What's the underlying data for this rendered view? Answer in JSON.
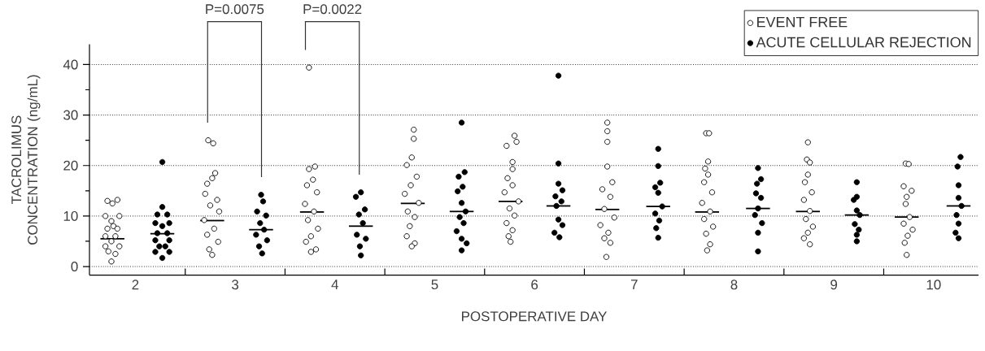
{
  "chart_data": {
    "type": "scatter",
    "xlabel": "POSTOPERATIVE DAY",
    "ylabel": "TACROLIMUS CONCENTRATION (ng/mL)",
    "xlim": [
      1.54,
      10.45
    ],
    "ylim": [
      -1.7,
      44
    ],
    "xticks": [
      2,
      3,
      4,
      5,
      6,
      7,
      8,
      9,
      10,
      {
        "value": 2.5,
        "label": null
      },
      {
        "value": 3.5,
        "label": null
      },
      {
        "value": 4.5,
        "label": null
      },
      {
        "value": 5.5,
        "label": null
      },
      {
        "value": 6.5,
        "label": null
      },
      {
        "value": 7.5,
        "label": null
      },
      {
        "value": 8.5,
        "label": null
      },
      {
        "value": 9.5,
        "label": null
      }
    ],
    "yticks": [
      0,
      10,
      20,
      30,
      40,
      {
        "value": 5,
        "label": null
      },
      {
        "value": 15,
        "label": null
      },
      {
        "value": 25,
        "label": null
      },
      {
        "value": 35,
        "label": null
      }
    ],
    "grid": "y",
    "legend": "top right",
    "annotations": [
      "P=0.0075",
      "P=0.0022"
    ],
    "series": [
      {
        "name": "EVENT FREE",
        "color": "#ffffff",
        "marker": "circle",
        "x": [
          1.72,
          1.77,
          1.82,
          1.7,
          1.84,
          1.76,
          1.78,
          1.72,
          1.82,
          1.7,
          1.8,
          1.76,
          1.7,
          1.84,
          1.73,
          1.8,
          1.76,
          2.73,
          2.78,
          2.8,
          2.77,
          2.72,
          2.7,
          2.82,
          2.75,
          2.84,
          2.69,
          2.79,
          2.72,
          2.83,
          2.74,
          2.77,
          3.74,
          3.8,
          3.74,
          3.78,
          3.72,
          3.82,
          3.7,
          3.79,
          3.73,
          3.83,
          3.76,
          3.71,
          3.81,
          3.76,
          4.79,
          4.79,
          4.77,
          4.72,
          4.82,
          4.76,
          4.7,
          4.84,
          4.73,
          4.8,
          4.75,
          4.72,
          4.8,
          4.77,
          5.8,
          5.82,
          5.72,
          5.78,
          5.78,
          5.73,
          5.78,
          5.7,
          5.84,
          5.75,
          5.8,
          5.72,
          5.78,
          5.74,
          5.76,
          6.73,
          6.73,
          6.73,
          6.73,
          6.78,
          6.68,
          6.76,
          6.7,
          6.8,
          6.66,
          6.74,
          6.7,
          6.76,
          6.72,
          7.72,
          7.75,
          7.74,
          7.71,
          7.74,
          7.7,
          7.78,
          7.68,
          7.76,
          7.7,
          7.79,
          7.72,
          7.76,
          7.73,
          8.74,
          8.73,
          8.76,
          8.74,
          8.71,
          8.78,
          8.7,
          8.76,
          8.72,
          8.79,
          8.74,
          8.7,
          8.76,
          9.72,
          9.75,
          9.7,
          9.78,
          9.73,
          9.72,
          9.76,
          9.7,
          9.79,
          9.74,
          9.71,
          9.73
        ],
        "values": [
          13.0,
          12.5,
          13.2,
          10.0,
          10.0,
          9.0,
          8.0,
          7.5,
          7.5,
          6.0,
          6.0,
          5.0,
          4.0,
          4.0,
          3.0,
          2.5,
          1.0,
          25.0,
          24.4,
          18.5,
          17.5,
          16.4,
          14.4,
          13.2,
          12.1,
          10.9,
          9.2,
          7.5,
          6.3,
          4.9,
          3.4,
          2.3,
          39.4,
          19.8,
          19.3,
          17.2,
          16.1,
          14.7,
          12.4,
          10.9,
          9.2,
          7.5,
          6.0,
          4.9,
          3.4,
          2.9,
          27.1,
          25.3,
          21.6,
          20.1,
          17.8,
          16.1,
          14.4,
          12.6,
          10.9,
          9.8,
          8.0,
          6.0,
          4.6,
          4.0,
          25.9,
          24.7,
          23.9,
          20.7,
          19.3,
          17.5,
          16.1,
          14.7,
          12.9,
          11.5,
          10.1,
          8.6,
          7.2,
          6.0,
          4.9,
          28.5,
          26.8,
          24.7,
          19.8,
          16.7,
          15.3,
          13.8,
          11.4,
          9.7,
          8.2,
          6.7,
          5.6,
          4.7,
          1.9,
          26.4,
          26.4,
          20.8,
          19.4,
          18.2,
          16.7,
          14.7,
          12.6,
          10.9,
          9.4,
          7.9,
          6.5,
          4.4,
          3.2,
          24.6,
          21.2,
          20.6,
          18.2,
          16.7,
          14.7,
          13.2,
          11.0,
          9.4,
          7.9,
          6.7,
          5.6,
          4.4,
          20.4,
          20.3,
          15.9,
          15.0,
          13.8,
          12.4,
          9.8,
          8.5,
          7.3,
          6.1,
          4.7,
          2.3
        ]
      },
      {
        "name": "ACUTE CELLULAR REJECTION",
        "color": "#000000",
        "marker": "circle",
        "x": [
          2.27,
          2.27,
          2.22,
          2.32,
          2.2,
          2.34,
          2.27,
          2.22,
          2.32,
          2.2,
          2.34,
          2.24,
          2.3,
          2.2,
          2.34,
          2.27,
          3.26,
          3.28,
          3.22,
          3.31,
          3.25,
          3.29,
          3.21,
          3.32,
          3.24,
          3.27,
          4.26,
          4.21,
          4.3,
          4.24,
          4.28,
          4.22,
          4.31,
          4.25,
          4.26,
          5.27,
          5.3,
          5.24,
          5.28,
          5.23,
          5.27,
          5.31,
          5.25,
          5.29,
          5.22,
          5.27,
          5.32,
          5.27,
          6.24,
          6.24,
          6.24,
          6.28,
          6.21,
          6.27,
          6.22,
          6.24,
          6.28,
          6.2,
          6.25,
          7.24,
          7.24,
          7.26,
          7.21,
          7.24,
          7.28,
          7.21,
          7.25,
          7.22,
          7.24,
          8.24,
          8.27,
          8.23,
          8.22,
          8.27,
          8.24,
          8.21,
          8.28,
          8.24,
          8.24,
          9.23,
          9.23,
          9.2,
          9.23,
          9.26,
          9.21,
          9.25,
          9.23,
          9.23,
          10.27,
          10.24,
          10.25,
          10.25,
          10.28,
          10.23,
          10.25,
          10.22,
          10.25
        ],
        "values": [
          20.7,
          11.8,
          10.3,
          10.3,
          8.6,
          8.6,
          8.0,
          6.6,
          6.6,
          5.2,
          5.2,
          4.0,
          4.0,
          2.9,
          2.9,
          1.7,
          14.2,
          12.9,
          10.9,
          10.1,
          8.6,
          7.3,
          6.3,
          5.2,
          4.0,
          2.6,
          14.7,
          13.8,
          11.3,
          10.3,
          8.6,
          6.3,
          5.5,
          4.0,
          2.2,
          28.5,
          18.7,
          17.8,
          15.8,
          14.9,
          12.6,
          10.9,
          9.8,
          8.6,
          7.0,
          5.5,
          4.6,
          3.2,
          37.8,
          20.4,
          16.4,
          15.1,
          13.9,
          12.9,
          12.0,
          9.3,
          8.2,
          6.7,
          5.8,
          23.3,
          19.9,
          16.6,
          15.7,
          14.6,
          11.9,
          10.5,
          9.1,
          7.6,
          5.7,
          19.5,
          17.3,
          16.4,
          14.5,
          13.6,
          11.5,
          10.2,
          8.6,
          6.7,
          3.0,
          16.7,
          13.8,
          13.2,
          11.1,
          10.2,
          8.4,
          7.3,
          6.3,
          5.0,
          21.7,
          19.8,
          16.1,
          13.6,
          12.0,
          10.2,
          8.5,
          6.7,
          5.6
        ]
      },
      {
        "type": "line",
        "marker": "none",
        "color": "#000000",
        "x": [
          1.65,
          1.89
        ],
        "values": [
          5.5,
          5.5
        ]
      },
      {
        "type": "line",
        "marker": "none",
        "color": "#000000",
        "x": [
          2.15,
          2.39
        ],
        "values": [
          6.5,
          6.5
        ]
      },
      {
        "type": "line",
        "marker": "none",
        "color": "#000000",
        "x": [
          2.65,
          2.89
        ],
        "values": [
          9.1,
          9.1
        ]
      },
      {
        "type": "line",
        "marker": "none",
        "color": "#000000",
        "x": [
          3.14,
          3.38
        ],
        "values": [
          7.3,
          7.3
        ]
      },
      {
        "type": "line",
        "marker": "none",
        "color": "#000000",
        "x": [
          3.65,
          3.89
        ],
        "values": [
          10.8,
          10.8
        ]
      },
      {
        "type": "line",
        "marker": "none",
        "color": "#000000",
        "x": [
          4.14,
          4.38
        ],
        "values": [
          8.0,
          8.0
        ]
      },
      {
        "type": "line",
        "marker": "none",
        "color": "#000000",
        "x": [
          4.66,
          4.9
        ],
        "values": [
          12.5,
          12.5
        ]
      },
      {
        "type": "line",
        "marker": "none",
        "color": "#000000",
        "x": [
          5.15,
          5.39
        ],
        "values": [
          10.9,
          10.9
        ]
      },
      {
        "type": "line",
        "marker": "none",
        "color": "#000000",
        "x": [
          5.64,
          5.88
        ],
        "values": [
          12.9,
          12.9
        ]
      },
      {
        "type": "line",
        "marker": "none",
        "color": "#000000",
        "x": [
          6.12,
          6.36
        ],
        "values": [
          12.0,
          12.0
        ]
      },
      {
        "type": "line",
        "marker": "none",
        "color": "#000000",
        "x": [
          6.61,
          6.85
        ],
        "values": [
          11.3,
          11.3
        ]
      },
      {
        "type": "line",
        "marker": "none",
        "color": "#000000",
        "x": [
          7.12,
          7.36
        ],
        "values": [
          11.9,
          11.9
        ]
      },
      {
        "type": "line",
        "marker": "none",
        "color": "#000000",
        "x": [
          7.61,
          7.85
        ],
        "values": [
          10.8,
          10.8
        ]
      },
      {
        "type": "line",
        "marker": "none",
        "color": "#000000",
        "x": [
          8.12,
          8.36
        ],
        "values": [
          11.5,
          11.5
        ]
      },
      {
        "type": "line",
        "marker": "none",
        "color": "#000000",
        "x": [
          8.62,
          8.86
        ],
        "values": [
          10.9,
          10.9
        ]
      },
      {
        "type": "line",
        "marker": "none",
        "color": "#000000",
        "x": [
          9.11,
          9.35
        ],
        "values": [
          10.2,
          10.2
        ]
      },
      {
        "type": "line",
        "marker": "none",
        "color": "#000000",
        "x": [
          9.61,
          9.85
        ],
        "values": [
          9.8,
          9.8
        ]
      },
      {
        "type": "line",
        "marker": "none",
        "color": "#000000",
        "x": [
          10.13,
          10.37
        ],
        "values": [
          12.0,
          12.0
        ]
      }
    ]
  }
}
